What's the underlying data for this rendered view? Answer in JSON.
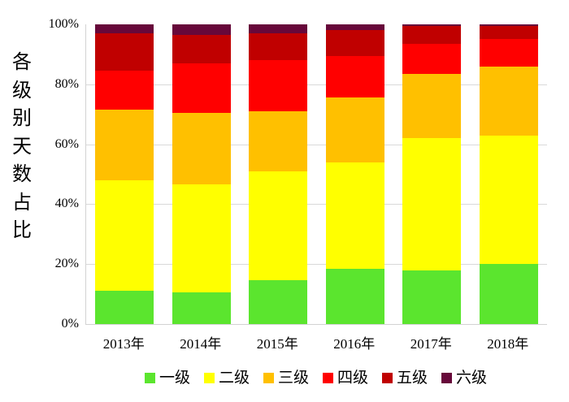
{
  "chart_data": {
    "type": "bar",
    "variant": "stacked-100-percent",
    "categories": [
      "2013年",
      "2014年",
      "2015年",
      "2016年",
      "2017年",
      "2018年"
    ],
    "series": [
      {
        "name": "一级",
        "color": "#5BE52E",
        "values": [
          11.0,
          10.5,
          14.5,
          18.5,
          18.0,
          20.0
        ]
      },
      {
        "name": "二级",
        "color": "#FFFF00",
        "values": [
          37.0,
          36.0,
          36.5,
          35.5,
          44.0,
          43.0
        ]
      },
      {
        "name": "三级",
        "color": "#FFC000",
        "values": [
          23.5,
          24.0,
          20.0,
          21.5,
          21.5,
          23.0
        ]
      },
      {
        "name": "四级",
        "color": "#FF0000",
        "values": [
          13.0,
          16.5,
          17.0,
          14.0,
          10.0,
          9.0
        ]
      },
      {
        "name": "五级",
        "color": "#C00000",
        "values": [
          12.5,
          9.5,
          9.0,
          8.5,
          6.0,
          4.5
        ]
      },
      {
        "name": "六级",
        "color": "#67083A",
        "values": [
          3.0,
          3.5,
          3.0,
          2.0,
          0.5,
          0.5
        ]
      }
    ],
    "title": "",
    "xlabel": "",
    "ylabel": "各级别天数占比",
    "ylim": [
      0,
      100
    ],
    "yticks": [
      {
        "value": 0,
        "label": "0%"
      },
      {
        "value": 20,
        "label": "20%"
      },
      {
        "value": 40,
        "label": "40%"
      },
      {
        "value": 60,
        "label": "60%"
      },
      {
        "value": 80,
        "label": "80%"
      },
      {
        "value": 100,
        "label": "100%"
      }
    ],
    "grid": true,
    "legend_position": "bottom"
  },
  "style": {
    "gridline_color": "#D9D9D9",
    "axis_color": "#D3D3D3",
    "background": "#FFFFFF",
    "text_color": "#000000"
  }
}
